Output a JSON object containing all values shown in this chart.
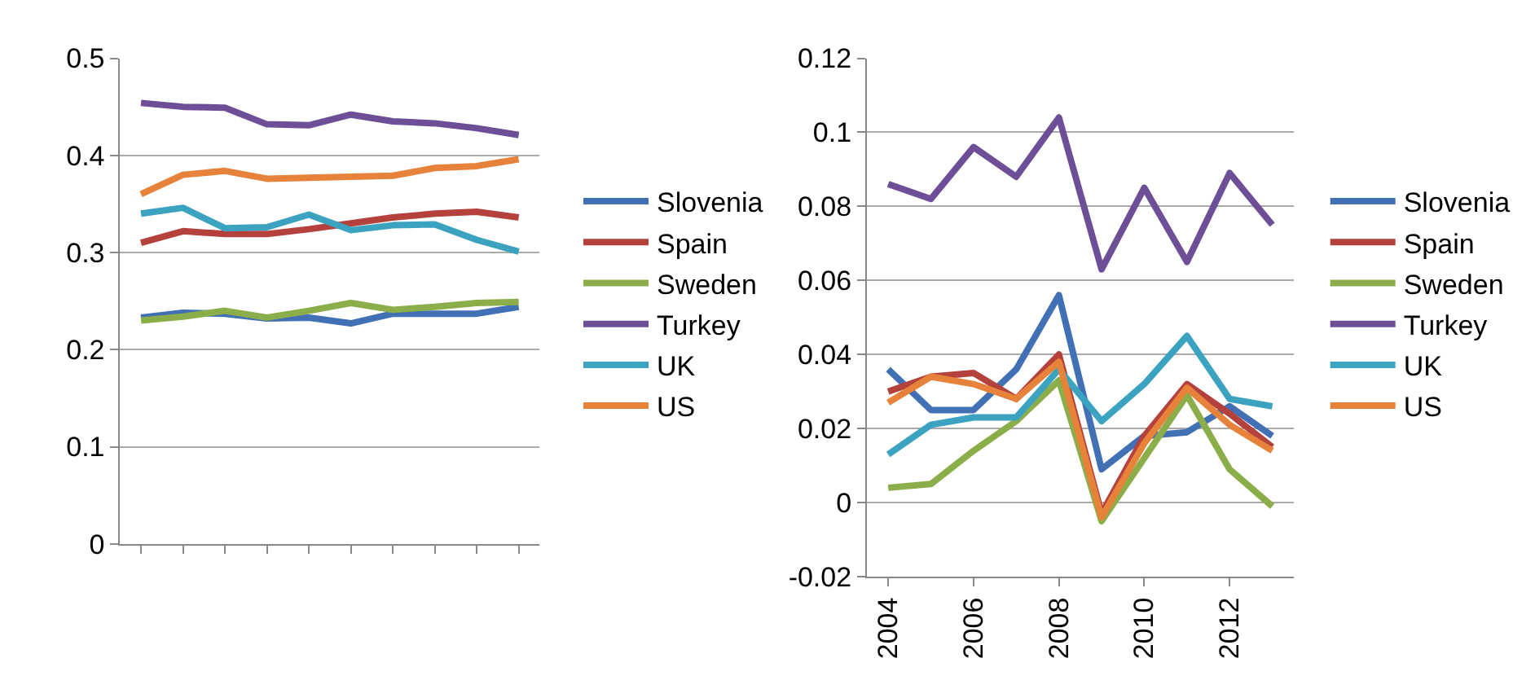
{
  "chart_data": [
    {
      "type": "line",
      "categories": [
        null,
        null,
        null,
        null,
        null,
        null,
        null,
        null,
        null,
        null
      ],
      "ylim": [
        0,
        0.5
      ],
      "yticks": [
        0,
        0.1,
        0.2,
        0.3,
        0.4,
        0.5
      ],
      "grid": "y",
      "legend": "right",
      "tick_labels": "y",
      "marker": "none",
      "series": [
        {
          "name": "Slovenia",
          "color": "#4170b5",
          "values": [
            0.233,
            0.238,
            0.237,
            0.232,
            0.233,
            0.227,
            0.237,
            0.237,
            0.237,
            0.244
          ]
        },
        {
          "name": "Spain",
          "color": "#b5413d",
          "values": [
            0.31,
            0.322,
            0.319,
            0.319,
            0.324,
            0.33,
            0.336,
            0.34,
            0.342,
            0.336
          ]
        },
        {
          "name": "Sweden",
          "color": "#8cae4a",
          "values": [
            0.23,
            0.234,
            0.24,
            0.233,
            0.24,
            0.248,
            0.241,
            0.244,
            0.248,
            0.249
          ]
        },
        {
          "name": "Turkey",
          "color": "#6c4f96",
          "values": [
            0.454,
            0.45,
            0.449,
            0.432,
            0.431,
            0.442,
            0.435,
            0.433,
            0.428,
            0.421
          ]
        },
        {
          "name": "UK",
          "color": "#3ba2bf",
          "values": [
            0.34,
            0.346,
            0.325,
            0.326,
            0.339,
            0.323,
            0.328,
            0.329,
            0.313,
            0.301
          ]
        },
        {
          "name": "US",
          "color": "#e6823a",
          "values": [
            0.36,
            0.38,
            0.384,
            0.376,
            0.377,
            0.378,
            0.379,
            0.387,
            0.389,
            0.396
          ]
        }
      ]
    },
    {
      "type": "line",
      "categories": [
        "2004",
        null,
        "2006",
        null,
        "2008",
        null,
        "2010",
        null,
        "2012",
        null
      ],
      "ylim": [
        -0.02,
        0.12
      ],
      "yticks": [
        -0.02,
        0,
        0.02,
        0.04,
        0.06,
        0.08,
        0.1,
        0.12
      ],
      "grid": "y",
      "legend": "right",
      "marker": "none",
      "series": [
        {
          "name": "Slovenia",
          "color": "#4170b5",
          "values": [
            0.036,
            0.025,
            0.025,
            0.036,
            0.056,
            0.009,
            0.018,
            0.019,
            0.026,
            0.018
          ]
        },
        {
          "name": "Spain",
          "color": "#b5413d",
          "values": [
            0.03,
            0.034,
            0.035,
            0.028,
            0.04,
            -0.003,
            0.018,
            0.032,
            0.024,
            0.015
          ]
        },
        {
          "name": "Sweden",
          "color": "#8cae4a",
          "values": [
            0.004,
            0.005,
            0.014,
            0.022,
            0.033,
            -0.005,
            0.012,
            0.029,
            0.009,
            -0.001
          ]
        },
        {
          "name": "Turkey",
          "color": "#6c4f96",
          "values": [
            0.086,
            0.082,
            0.096,
            0.088,
            0.104,
            0.063,
            0.085,
            0.065,
            0.089,
            0.075
          ]
        },
        {
          "name": "UK",
          "color": "#3ba2bf",
          "values": [
            0.013,
            0.021,
            0.023,
            0.023,
            0.036,
            0.022,
            0.032,
            0.045,
            0.028,
            0.026
          ]
        },
        {
          "name": "US",
          "color": "#e6823a",
          "values": [
            0.027,
            0.034,
            0.032,
            0.028,
            0.038,
            -0.004,
            0.016,
            0.031,
            0.021,
            0.014
          ]
        }
      ]
    }
  ]
}
